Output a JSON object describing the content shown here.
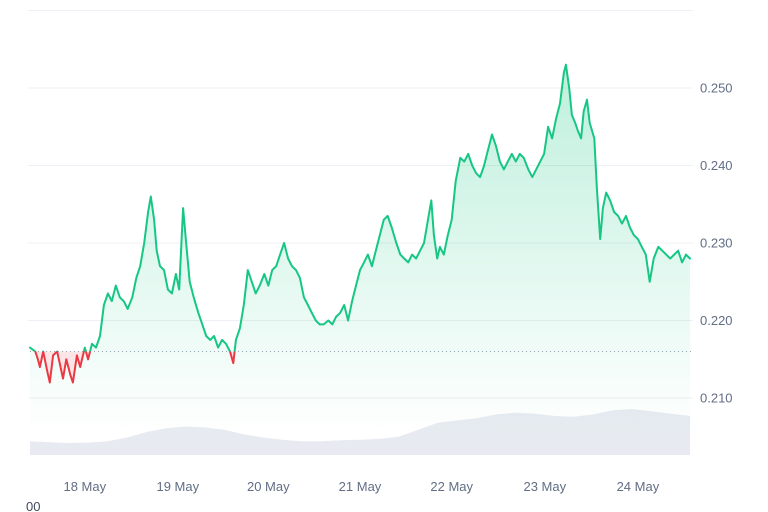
{
  "page": {
    "background": "#ffffff"
  },
  "footer": {
    "partial_label": "00"
  },
  "chart_data": {
    "type": "line",
    "description": "7-day cryptocurrency price line chart with red segments below the previous-close dotted baseline and a grey volume area along the bottom",
    "grid": true,
    "legend": "none",
    "baseline": 0.216,
    "ylim": [
      0.201,
      0.26
    ],
    "y_gridlines": [
      0.26,
      0.25,
      0.24,
      0.23,
      0.22,
      0.21
    ],
    "y_ticks": [
      {
        "value": 0.25,
        "label": "0.250"
      },
      {
        "value": 0.24,
        "label": "0.240"
      },
      {
        "value": 0.23,
        "label": "0.230"
      },
      {
        "value": 0.22,
        "label": "0.220"
      },
      {
        "value": 0.21,
        "label": "0.210"
      }
    ],
    "x_ticks": [
      {
        "label": "18 May",
        "t": 0.083
      },
      {
        "label": "19 May",
        "t": 0.224
      },
      {
        "label": "20 May",
        "t": 0.361
      },
      {
        "label": "21 May",
        "t": 0.5
      },
      {
        "label": "22 May",
        "t": 0.639
      },
      {
        "label": "23 May",
        "t": 0.78
      },
      {
        "label": "24 May",
        "t": 0.921
      }
    ],
    "series": [
      {
        "name": "price",
        "points": [
          [
            0.0,
            0.2165
          ],
          [
            0.008,
            0.216
          ],
          [
            0.012,
            0.215
          ],
          [
            0.015,
            0.214
          ],
          [
            0.02,
            0.216
          ],
          [
            0.026,
            0.2135
          ],
          [
            0.03,
            0.212
          ],
          [
            0.035,
            0.2155
          ],
          [
            0.041,
            0.216
          ],
          [
            0.045,
            0.2145
          ],
          [
            0.05,
            0.2125
          ],
          [
            0.055,
            0.215
          ],
          [
            0.061,
            0.213
          ],
          [
            0.065,
            0.212
          ],
          [
            0.071,
            0.2155
          ],
          [
            0.076,
            0.214
          ],
          [
            0.083,
            0.2165
          ],
          [
            0.088,
            0.215
          ],
          [
            0.094,
            0.217
          ],
          [
            0.1,
            0.2165
          ],
          [
            0.106,
            0.218
          ],
          [
            0.112,
            0.222
          ],
          [
            0.118,
            0.2235
          ],
          [
            0.124,
            0.2225
          ],
          [
            0.13,
            0.2245
          ],
          [
            0.136,
            0.223
          ],
          [
            0.142,
            0.2225
          ],
          [
            0.148,
            0.2215
          ],
          [
            0.155,
            0.223
          ],
          [
            0.161,
            0.2255
          ],
          [
            0.167,
            0.227
          ],
          [
            0.173,
            0.23
          ],
          [
            0.179,
            0.234
          ],
          [
            0.183,
            0.236
          ],
          [
            0.188,
            0.233
          ],
          [
            0.192,
            0.229
          ],
          [
            0.197,
            0.227
          ],
          [
            0.203,
            0.2265
          ],
          [
            0.209,
            0.224
          ],
          [
            0.215,
            0.2235
          ],
          [
            0.221,
            0.226
          ],
          [
            0.226,
            0.224
          ],
          [
            0.232,
            0.2345
          ],
          [
            0.236,
            0.2305
          ],
          [
            0.242,
            0.225
          ],
          [
            0.248,
            0.223
          ],
          [
            0.255,
            0.221
          ],
          [
            0.261,
            0.2195
          ],
          [
            0.267,
            0.218
          ],
          [
            0.273,
            0.2175
          ],
          [
            0.279,
            0.218
          ],
          [
            0.285,
            0.2165
          ],
          [
            0.291,
            0.2175
          ],
          [
            0.297,
            0.217
          ],
          [
            0.303,
            0.216
          ],
          [
            0.308,
            0.2145
          ],
          [
            0.312,
            0.2175
          ],
          [
            0.318,
            0.219
          ],
          [
            0.324,
            0.222
          ],
          [
            0.33,
            0.2265
          ],
          [
            0.336,
            0.225
          ],
          [
            0.342,
            0.2235
          ],
          [
            0.348,
            0.2245
          ],
          [
            0.355,
            0.226
          ],
          [
            0.361,
            0.2245
          ],
          [
            0.367,
            0.2265
          ],
          [
            0.373,
            0.227
          ],
          [
            0.379,
            0.2285
          ],
          [
            0.385,
            0.23
          ],
          [
            0.391,
            0.228
          ],
          [
            0.397,
            0.227
          ],
          [
            0.403,
            0.2265
          ],
          [
            0.409,
            0.2255
          ],
          [
            0.415,
            0.223
          ],
          [
            0.421,
            0.222
          ],
          [
            0.427,
            0.221
          ],
          [
            0.433,
            0.22
          ],
          [
            0.439,
            0.2195
          ],
          [
            0.445,
            0.2195
          ],
          [
            0.452,
            0.22
          ],
          [
            0.458,
            0.2195
          ],
          [
            0.464,
            0.2205
          ],
          [
            0.47,
            0.221
          ],
          [
            0.476,
            0.222
          ],
          [
            0.482,
            0.22
          ],
          [
            0.488,
            0.2225
          ],
          [
            0.494,
            0.2245
          ],
          [
            0.5,
            0.2265
          ],
          [
            0.506,
            0.2275
          ],
          [
            0.512,
            0.2285
          ],
          [
            0.518,
            0.227
          ],
          [
            0.524,
            0.229
          ],
          [
            0.53,
            0.231
          ],
          [
            0.536,
            0.233
          ],
          [
            0.542,
            0.2335
          ],
          [
            0.548,
            0.232
          ],
          [
            0.555,
            0.23
          ],
          [
            0.561,
            0.2285
          ],
          [
            0.567,
            0.228
          ],
          [
            0.573,
            0.2275
          ],
          [
            0.579,
            0.2285
          ],
          [
            0.585,
            0.228
          ],
          [
            0.591,
            0.229
          ],
          [
            0.597,
            0.23
          ],
          [
            0.603,
            0.233
          ],
          [
            0.608,
            0.2355
          ],
          [
            0.612,
            0.231
          ],
          [
            0.617,
            0.228
          ],
          [
            0.621,
            0.2295
          ],
          [
            0.627,
            0.2285
          ],
          [
            0.633,
            0.231
          ],
          [
            0.639,
            0.233
          ],
          [
            0.645,
            0.238
          ],
          [
            0.652,
            0.241
          ],
          [
            0.658,
            0.2405
          ],
          [
            0.664,
            0.2415
          ],
          [
            0.67,
            0.24
          ],
          [
            0.676,
            0.239
          ],
          [
            0.682,
            0.2385
          ],
          [
            0.688,
            0.24
          ],
          [
            0.694,
            0.242
          ],
          [
            0.7,
            0.244
          ],
          [
            0.706,
            0.2425
          ],
          [
            0.712,
            0.2405
          ],
          [
            0.718,
            0.2395
          ],
          [
            0.724,
            0.2405
          ],
          [
            0.73,
            0.2415
          ],
          [
            0.736,
            0.2405
          ],
          [
            0.742,
            0.2415
          ],
          [
            0.748,
            0.241
          ],
          [
            0.755,
            0.2395
          ],
          [
            0.761,
            0.2385
          ],
          [
            0.767,
            0.2395
          ],
          [
            0.773,
            0.2405
          ],
          [
            0.779,
            0.2415
          ],
          [
            0.785,
            0.245
          ],
          [
            0.791,
            0.2435
          ],
          [
            0.797,
            0.246
          ],
          [
            0.803,
            0.248
          ],
          [
            0.809,
            0.252
          ],
          [
            0.812,
            0.253
          ],
          [
            0.817,
            0.25
          ],
          [
            0.821,
            0.2465
          ],
          [
            0.826,
            0.2455
          ],
          [
            0.83,
            0.2445
          ],
          [
            0.835,
            0.2435
          ],
          [
            0.839,
            0.247
          ],
          [
            0.844,
            0.2485
          ],
          [
            0.848,
            0.2455
          ],
          [
            0.855,
            0.2435
          ],
          [
            0.859,
            0.237
          ],
          [
            0.864,
            0.2305
          ],
          [
            0.868,
            0.2345
          ],
          [
            0.873,
            0.2365
          ],
          [
            0.879,
            0.2355
          ],
          [
            0.885,
            0.234
          ],
          [
            0.891,
            0.2335
          ],
          [
            0.897,
            0.2325
          ],
          [
            0.903,
            0.2335
          ],
          [
            0.909,
            0.232
          ],
          [
            0.915,
            0.231
          ],
          [
            0.921,
            0.2305
          ],
          [
            0.927,
            0.2295
          ],
          [
            0.933,
            0.2285
          ],
          [
            0.939,
            0.225
          ],
          [
            0.945,
            0.228
          ],
          [
            0.952,
            0.2295
          ],
          [
            0.958,
            0.229
          ],
          [
            0.964,
            0.2285
          ],
          [
            0.97,
            0.228
          ],
          [
            0.976,
            0.2285
          ],
          [
            0.982,
            0.229
          ],
          [
            0.988,
            0.2275
          ],
          [
            0.994,
            0.2285
          ],
          [
            1.0,
            0.228
          ]
        ]
      }
    ],
    "volume_profile": [
      0.3,
      0.28,
      0.26,
      0.27,
      0.3,
      0.38,
      0.5,
      0.58,
      0.62,
      0.6,
      0.55,
      0.45,
      0.38,
      0.33,
      0.3,
      0.3,
      0.32,
      0.33,
      0.35,
      0.4,
      0.55,
      0.7,
      0.75,
      0.8,
      0.88,
      0.92,
      0.9,
      0.85,
      0.83,
      0.88,
      0.97,
      1.0,
      0.95,
      0.9,
      0.85
    ],
    "colors": {
      "up": "#16c784",
      "down": "#ea3943",
      "down_fill": "rgba(234,57,67,0.13)",
      "volume": "#e7ebf1",
      "grid": "#edf0f4",
      "axis_text": "#616e85",
      "baseline": "#97a2b0"
    }
  }
}
